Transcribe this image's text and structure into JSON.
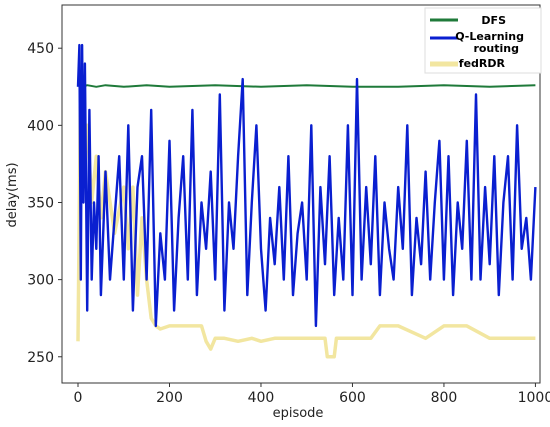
{
  "chart_data": {
    "type": "line",
    "title": "",
    "xlabel": "episode",
    "ylabel": "delay(ms)",
    "xlim": [
      -35,
      1010
    ],
    "ylim": [
      233,
      478
    ],
    "xticks": [
      0,
      200,
      400,
      600,
      800,
      1000
    ],
    "yticks": [
      250,
      300,
      350,
      400,
      450
    ],
    "grid": false,
    "legend_position": "top-right",
    "legend_entries": [
      "DFS",
      "Q-Learning",
      "routing",
      "fedRDR"
    ],
    "series": [
      {
        "name": "DFS",
        "color": "#1f7a3a",
        "x": [
          0,
          10,
          20,
          40,
          60,
          100,
          150,
          200,
          300,
          400,
          500,
          600,
          700,
          800,
          900,
          1000
        ],
        "y": [
          426,
          425,
          426,
          425,
          426,
          425,
          426,
          425,
          426,
          425,
          426,
          425,
          425,
          426,
          425,
          426
        ]
      },
      {
        "name": "Q-Learning routing",
        "color": "#0a1fd0",
        "x": [
          0,
          3,
          6,
          9,
          12,
          15,
          20,
          25,
          30,
          35,
          40,
          45,
          50,
          60,
          70,
          80,
          90,
          100,
          110,
          120,
          130,
          140,
          150,
          160,
          170,
          180,
          190,
          200,
          210,
          220,
          230,
          240,
          250,
          260,
          270,
          280,
          290,
          300,
          310,
          320,
          330,
          340,
          350,
          360,
          370,
          380,
          390,
          400,
          410,
          420,
          430,
          440,
          450,
          460,
          470,
          480,
          490,
          500,
          510,
          520,
          530,
          540,
          550,
          560,
          570,
          580,
          590,
          600,
          610,
          620,
          630,
          640,
          650,
          660,
          670,
          680,
          690,
          700,
          710,
          720,
          730,
          740,
          750,
          760,
          770,
          780,
          790,
          800,
          810,
          820,
          830,
          840,
          850,
          860,
          870,
          880,
          890,
          900,
          910,
          920,
          930,
          940,
          950,
          960,
          970,
          980,
          990,
          1000
        ],
        "y": [
          425,
          452,
          300,
          452,
          350,
          440,
          280,
          410,
          300,
          350,
          320,
          380,
          290,
          370,
          300,
          340,
          380,
          300,
          400,
          280,
          360,
          380,
          300,
          410,
          270,
          330,
          300,
          390,
          280,
          340,
          380,
          300,
          410,
          290,
          350,
          320,
          370,
          300,
          420,
          280,
          350,
          320,
          380,
          430,
          290,
          350,
          400,
          320,
          280,
          340,
          310,
          360,
          300,
          380,
          290,
          330,
          350,
          300,
          400,
          270,
          360,
          310,
          380,
          290,
          340,
          300,
          400,
          290,
          430,
          300,
          360,
          310,
          380,
          290,
          350,
          320,
          300,
          360,
          320,
          400,
          290,
          340,
          310,
          370,
          300,
          350,
          390,
          300,
          380,
          290,
          350,
          320,
          390,
          300,
          420,
          300,
          360,
          310,
          380,
          290,
          350,
          380,
          300,
          400,
          320,
          340,
          300,
          360
        ]
      },
      {
        "name": "fedRDR",
        "color": "#f2e6a0",
        "x": [
          0,
          5,
          10,
          20,
          30,
          40,
          50,
          60,
          80,
          100,
          110,
          120,
          130,
          140,
          150,
          160,
          170,
          180,
          200,
          220,
          250,
          270,
          280,
          290,
          300,
          320,
          350,
          380,
          400,
          430,
          450,
          480,
          500,
          540,
          545,
          560,
          565,
          600,
          640,
          660,
          700,
          760,
          800,
          830,
          850,
          900,
          940,
          960,
          1000
        ],
        "y": [
          260,
          412,
          360,
          400,
          350,
          380,
          340,
          370,
          330,
          360,
          320,
          360,
          290,
          340,
          300,
          275,
          270,
          268,
          270,
          270,
          270,
          270,
          260,
          255,
          262,
          262,
          260,
          262,
          260,
          262,
          262,
          262,
          262,
          262,
          250,
          250,
          262,
          262,
          262,
          270,
          270,
          262,
          270,
          270,
          270,
          262,
          262,
          262,
          262
        ]
      }
    ]
  }
}
